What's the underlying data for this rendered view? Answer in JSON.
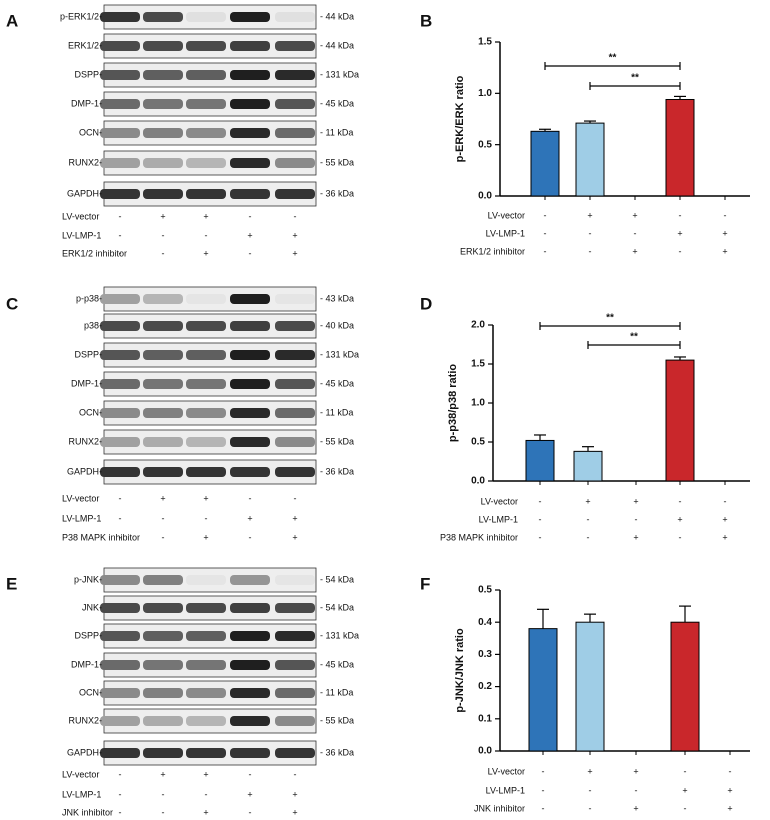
{
  "blots": [
    {
      "panel": "A",
      "rows": [
        {
          "label": "p-ERK1/2-",
          "kda": "- 44 kDa"
        },
        {
          "label": "ERK1/2-",
          "kda": "- 44 kDa"
        },
        {
          "label": "DSPP-",
          "kda": "- 131 kDa"
        },
        {
          "label": "DMP-1-",
          "kda": "- 45 kDa"
        },
        {
          "label": "OCN-",
          "kda": "- 11 kDa"
        },
        {
          "label": "RUNX2-",
          "kda": "- 55 kDa"
        },
        {
          "label": "GAPDH-",
          "kda": "- 36 kDa"
        }
      ],
      "conditions": [
        {
          "name": "LV-vector",
          "signs": [
            "-",
            "+",
            "+",
            "-",
            "-"
          ]
        },
        {
          "name": "LV-LMP-1",
          "signs": [
            "-",
            "-",
            "-",
            "+",
            "+"
          ]
        },
        {
          "name": "ERK1/2 inhibitor",
          "signs": [
            "-",
            "-",
            "+",
            "-",
            "+"
          ]
        }
      ]
    },
    {
      "panel": "C",
      "rows": [
        {
          "label": "p-p38-",
          "kda": "- 43 kDa"
        },
        {
          "label": "p38-",
          "kda": "- 40 kDa"
        },
        {
          "label": "DSPP-",
          "kda": "- 131 kDa"
        },
        {
          "label": "DMP-1-",
          "kda": "- 45 kDa"
        },
        {
          "label": "OCN-",
          "kda": "- 11 kDa"
        },
        {
          "label": "RUNX2-",
          "kda": "- 55 kDa"
        },
        {
          "label": "GAPDH-",
          "kda": "- 36 kDa"
        }
      ],
      "conditions": [
        {
          "name": "LV-vector",
          "signs": [
            "-",
            "+",
            "+",
            "-",
            "-"
          ]
        },
        {
          "name": "LV-LMP-1",
          "signs": [
            "-",
            "-",
            "-",
            "+",
            "+"
          ]
        },
        {
          "name": "P38 MAPK inhibitor",
          "signs": [
            "-",
            "-",
            "+",
            "-",
            "+"
          ]
        }
      ]
    },
    {
      "panel": "E",
      "rows": [
        {
          "label": "p-JNK-",
          "kda": "- 54 kDa"
        },
        {
          "label": "JNK-",
          "kda": "- 54 kDa"
        },
        {
          "label": "DSPP-",
          "kda": "- 131 kDa"
        },
        {
          "label": "DMP-1-",
          "kda": "- 45 kDa"
        },
        {
          "label": "OCN-",
          "kda": "- 11 kDa"
        },
        {
          "label": "RUNX2-",
          "kda": "- 55 kDa"
        },
        {
          "label": "GAPDH-",
          "kda": "- 36 kDa"
        }
      ],
      "conditions": [
        {
          "name": "LV-vector",
          "signs": [
            "-",
            "+",
            "+",
            "-",
            "-"
          ]
        },
        {
          "name": "LV-LMP-1",
          "signs": [
            "-",
            "-",
            "-",
            "+",
            "+"
          ]
        },
        {
          "name": "JNK inhibitor",
          "signs": [
            "-",
            "-",
            "+",
            "-",
            "+"
          ]
        }
      ]
    }
  ],
  "chart_data": [
    {
      "type": "bar",
      "panel": "B",
      "y_label": "p-ERK/ERK ratio",
      "categories": [
        null,
        null,
        null,
        null,
        null
      ],
      "values": [
        0.63,
        0.71,
        null,
        0.94,
        null
      ],
      "errors": [
        0.02,
        0.02,
        null,
        0.03,
        null
      ],
      "colors": [
        "#2e74b8",
        "#9fcde6",
        null,
        "#c9272b",
        null
      ],
      "ylim": [
        0,
        1.5
      ],
      "yticks": [
        {
          "value": 0,
          "label": "0.0"
        },
        {
          "value": 0.5,
          "label": "0.5"
        },
        {
          "value": 1,
          "label": "1.0"
        },
        {
          "value": 1.5,
          "label": "1.5"
        }
      ],
      "annotations": [
        "**",
        "**"
      ],
      "conditions": [
        {
          "name": "LV-vector",
          "signs": [
            "-",
            "+",
            "+",
            "-",
            "-"
          ]
        },
        {
          "name": "LV-LMP-1",
          "signs": [
            "-",
            "-",
            "-",
            "+",
            "+"
          ]
        },
        {
          "name": "ERK1/2 inhibitor",
          "signs": [
            "-",
            "-",
            "+",
            "-",
            "+"
          ]
        }
      ]
    },
    {
      "type": "bar",
      "panel": "D",
      "y_label": "p-p38/p38 ratio",
      "categories": [
        null,
        null,
        null,
        null,
        null
      ],
      "values": [
        0.52,
        0.38,
        null,
        1.55,
        null
      ],
      "errors": [
        0.07,
        0.06,
        null,
        0.04,
        null
      ],
      "colors": [
        "#2e74b8",
        "#9fcde6",
        null,
        "#c9272b",
        null
      ],
      "ylim": [
        0,
        2
      ],
      "yticks": [
        {
          "value": 0,
          "label": "0.0"
        },
        {
          "value": 0.5,
          "label": "0.5"
        },
        {
          "value": 1,
          "label": "1.0"
        },
        {
          "value": 1.5,
          "label": "1.5"
        },
        {
          "value": 2,
          "label": "2.0"
        }
      ],
      "annotations": [
        "**",
        "**"
      ],
      "conditions": [
        {
          "name": "LV-vector",
          "signs": [
            "-",
            "+",
            "+",
            "-",
            "-"
          ]
        },
        {
          "name": "LV-LMP-1",
          "signs": [
            "-",
            "-",
            "-",
            "+",
            "+"
          ]
        },
        {
          "name": "P38 MAPK inhibitor",
          "signs": [
            "-",
            "-",
            "+",
            "-",
            "+"
          ]
        }
      ]
    },
    {
      "type": "bar",
      "panel": "F",
      "y_label": "p-JNK/JNK ratio",
      "categories": [
        null,
        null,
        null,
        null,
        null
      ],
      "values": [
        0.38,
        0.4,
        null,
        0.4,
        null
      ],
      "errors": [
        0.06,
        0.025,
        null,
        0.05,
        null
      ],
      "colors": [
        "#2e74b8",
        "#9fcde6",
        null,
        "#c9272b",
        null
      ],
      "ylim": [
        0,
        0.5
      ],
      "yticks": [
        {
          "value": 0,
          "label": "0.0"
        },
        {
          "value": 0.1,
          "label": "0.1"
        },
        {
          "value": 0.2,
          "label": "0.2"
        },
        {
          "value": 0.3,
          "label": "0.3"
        },
        {
          "value": 0.4,
          "label": "0.4"
        },
        {
          "value": 0.5,
          "label": "0.5"
        }
      ],
      "annotations": [],
      "conditions": [
        {
          "name": "LV-vector",
          "signs": [
            "-",
            "+",
            "+",
            "-",
            "-"
          ]
        },
        {
          "name": "LV-LMP-1",
          "signs": [
            "-",
            "-",
            "-",
            "+",
            "+"
          ]
        },
        {
          "name": "JNK inhibitor",
          "signs": [
            "-",
            "-",
            "+",
            "-",
            "+"
          ]
        }
      ]
    }
  ]
}
